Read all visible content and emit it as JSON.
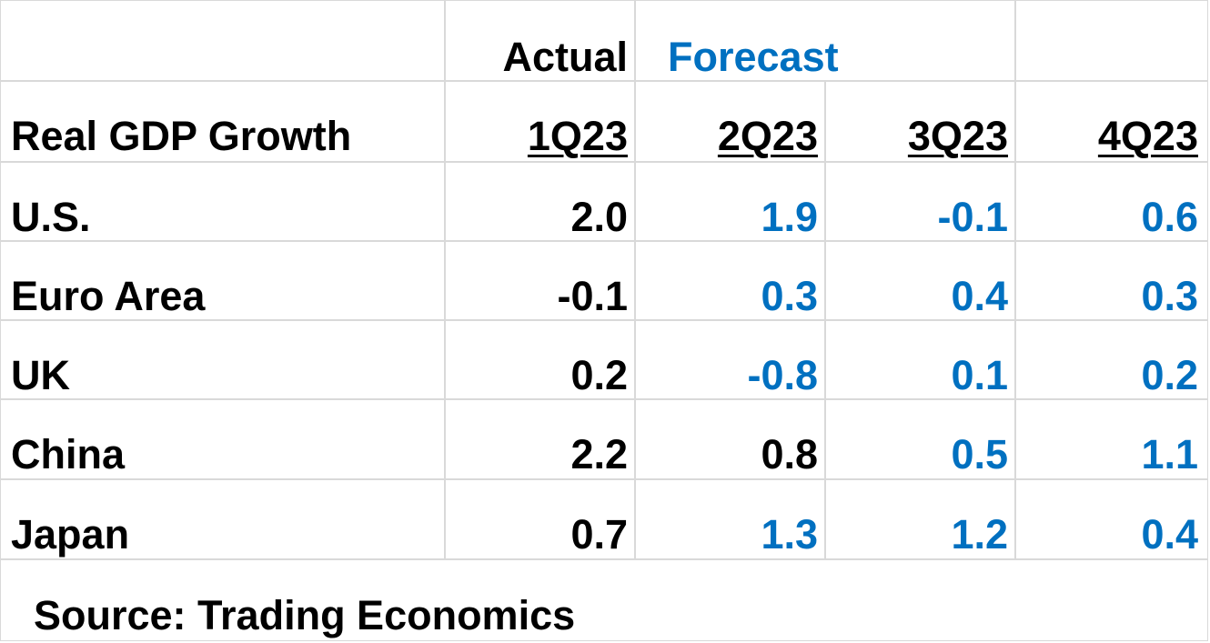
{
  "colors": {
    "actual": "#000000",
    "forecast": "#0070c0",
    "grid": "#d9d9d9"
  },
  "chart_data": {
    "type": "table",
    "group_headers": {
      "actual": "Actual",
      "forecast": "Forecast"
    },
    "row_header": "Real GDP Growth",
    "columns": [
      "1Q23",
      "2Q23",
      "3Q23",
      "4Q23"
    ],
    "rows": [
      {
        "label": "U.S.",
        "values": [
          "2.0",
          "1.9",
          "-0.1",
          "0.6"
        ],
        "colors": [
          "black",
          "blue",
          "blue",
          "blue"
        ]
      },
      {
        "label": "Euro Area",
        "values": [
          "-0.1",
          "0.3",
          "0.4",
          "0.3"
        ],
        "colors": [
          "black",
          "blue",
          "blue",
          "blue"
        ]
      },
      {
        "label": "UK",
        "values": [
          "0.2",
          "-0.8",
          "0.1",
          "0.2"
        ],
        "colors": [
          "black",
          "blue",
          "blue",
          "blue"
        ]
      },
      {
        "label": "China",
        "values": [
          "2.2",
          "0.8",
          "0.5",
          "1.1"
        ],
        "colors": [
          "black",
          "black",
          "blue",
          "blue"
        ]
      },
      {
        "label": "Japan",
        "values": [
          "0.7",
          "1.3",
          "1.2",
          "0.4"
        ],
        "colors": [
          "black",
          "blue",
          "blue",
          "blue"
        ]
      }
    ],
    "source": "Source: Trading Economics"
  }
}
